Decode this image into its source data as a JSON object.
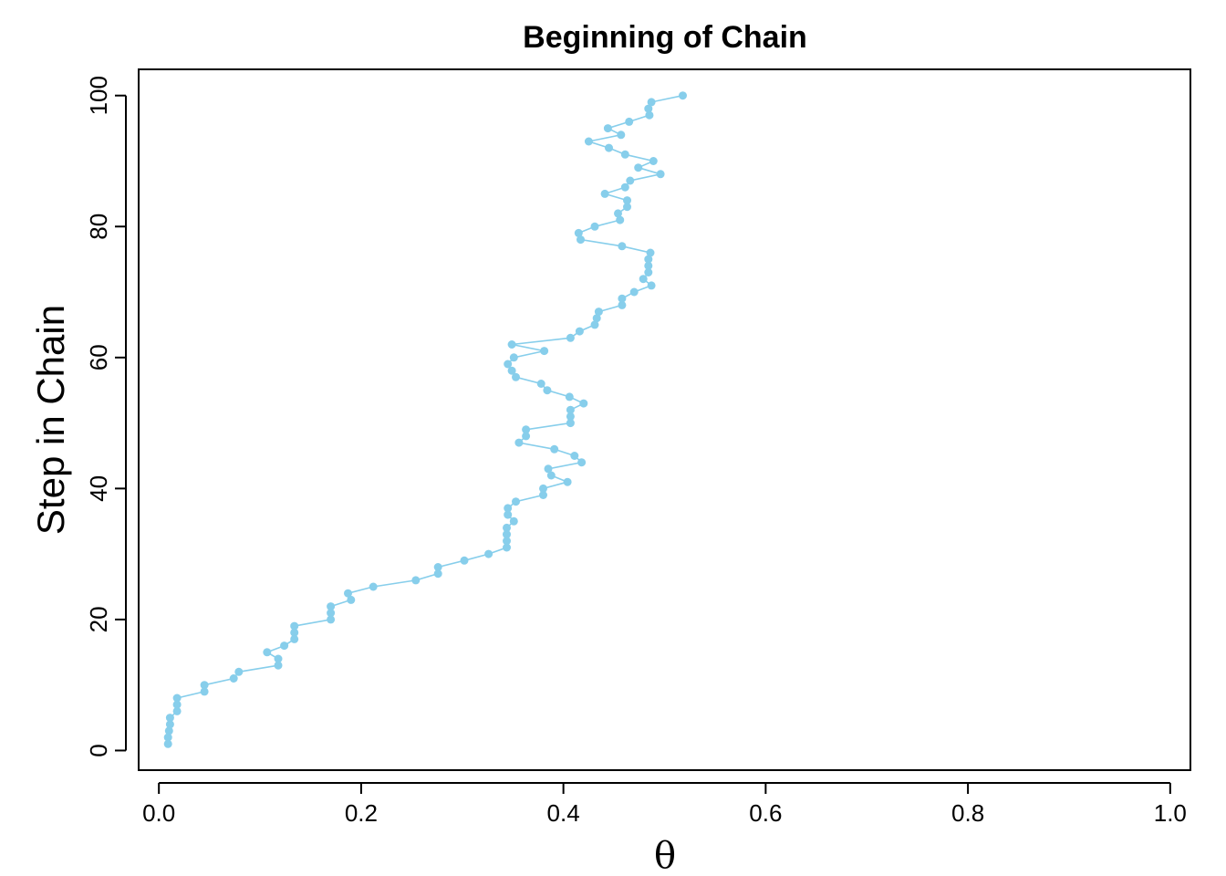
{
  "chart_data": {
    "type": "line",
    "title": "Beginning of Chain",
    "xlabel": "θ",
    "ylabel": "Step in Chain",
    "xlim": [
      -0.02,
      1.02
    ],
    "ylim": [
      -3,
      104
    ],
    "xticks": [
      0.0,
      0.2,
      0.4,
      0.6,
      0.8,
      1.0
    ],
    "xtick_labels": [
      "0.0",
      "0.2",
      "0.4",
      "0.6",
      "0.8",
      "1.0"
    ],
    "yticks": [
      0,
      20,
      40,
      60,
      80,
      100
    ],
    "ytick_labels": [
      "0",
      "20",
      "40",
      "60",
      "80",
      "100"
    ],
    "grid": false,
    "series": [
      {
        "color": "#87CEEB",
        "markers": true,
        "x": [
          0.009,
          0.009,
          0.01,
          0.011,
          0.011,
          0.018,
          0.018,
          0.018,
          0.045,
          0.045,
          0.074,
          0.079,
          0.118,
          0.118,
          0.107,
          0.124,
          0.134,
          0.134,
          0.134,
          0.17,
          0.17,
          0.17,
          0.19,
          0.187,
          0.212,
          0.254,
          0.276,
          0.276,
          0.302,
          0.326,
          0.344,
          0.344,
          0.344,
          0.344,
          0.351,
          0.345,
          0.345,
          0.353,
          0.38,
          0.38,
          0.404,
          0.388,
          0.385,
          0.418,
          0.411,
          0.391,
          0.356,
          0.363,
          0.363,
          0.407,
          0.407,
          0.407,
          0.42,
          0.406,
          0.384,
          0.378,
          0.353,
          0.349,
          0.345,
          0.351,
          0.381,
          0.349,
          0.407,
          0.416,
          0.431,
          0.433,
          0.435,
          0.458,
          0.458,
          0.47,
          0.487,
          0.479,
          0.484,
          0.484,
          0.484,
          0.486,
          0.458,
          0.417,
          0.415,
          0.431,
          0.456,
          0.454,
          0.463,
          0.463,
          0.441,
          0.461,
          0.466,
          0.496,
          0.474,
          0.489,
          0.461,
          0.445,
          0.425,
          0.457,
          0.444,
          0.465,
          0.485,
          0.484,
          0.487,
          0.518
        ],
        "y": [
          1,
          2,
          3,
          4,
          5,
          6,
          7,
          8,
          9,
          10,
          11,
          12,
          13,
          14,
          15,
          16,
          17,
          18,
          19,
          20,
          21,
          22,
          23,
          24,
          25,
          26,
          27,
          28,
          29,
          30,
          31,
          32,
          33,
          34,
          35,
          36,
          37,
          38,
          39,
          40,
          41,
          42,
          43,
          44,
          45,
          46,
          47,
          48,
          49,
          50,
          51,
          52,
          53,
          54,
          55,
          56,
          57,
          58,
          59,
          60,
          61,
          62,
          63,
          64,
          65,
          66,
          67,
          68,
          69,
          70,
          71,
          72,
          73,
          74,
          75,
          76,
          77,
          78,
          79,
          80,
          81,
          82,
          83,
          84,
          85,
          86,
          87,
          88,
          89,
          90,
          91,
          92,
          93,
          94,
          95,
          96,
          97,
          98,
          99,
          100
        ]
      }
    ]
  }
}
